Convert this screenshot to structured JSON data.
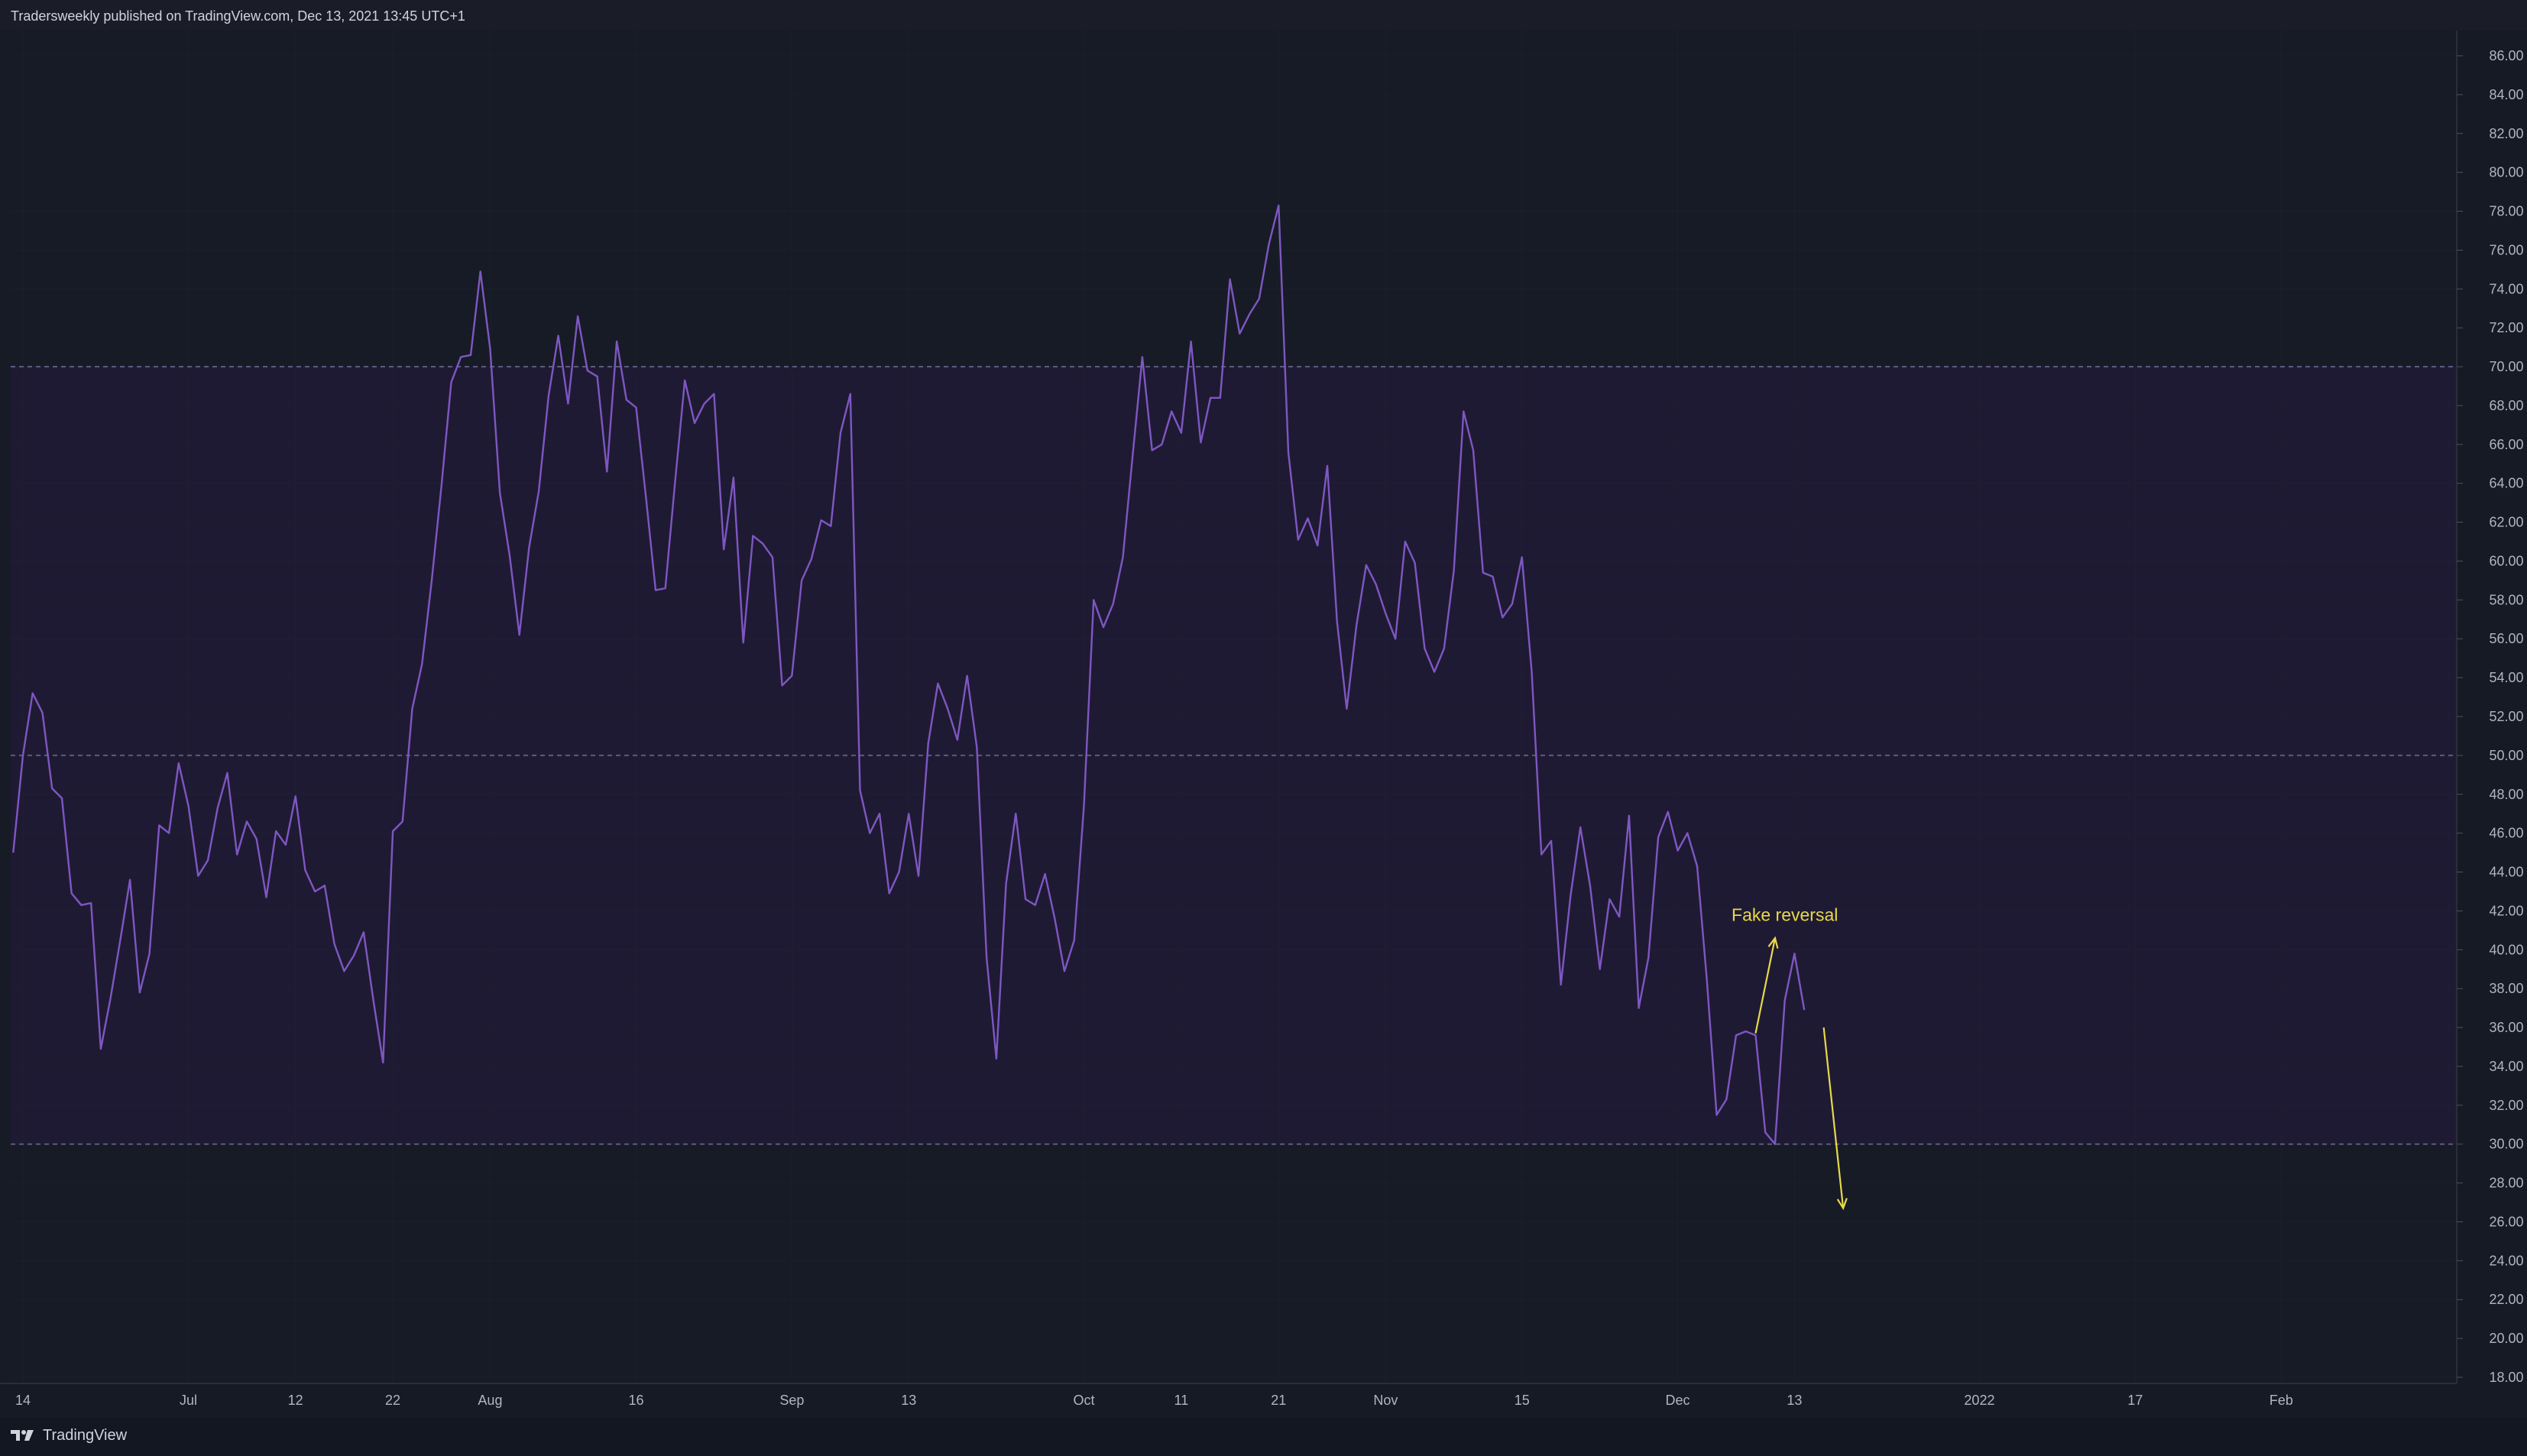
{
  "header": {
    "text": "Tradersweekly published on TradingView.com, Dec 13, 2021 13:45 UTC+1"
  },
  "footer": {
    "brand": "TradingView",
    "logo_icon": "tradingview-logo-icon"
  },
  "colors": {
    "background": "#161a25",
    "line": "#7e57c2",
    "band_fill": "#1f1a33",
    "band_border": "#6c6391",
    "annotation": "#e8d94a",
    "axis_text": "#b2b5be",
    "grid": "#1f2331"
  },
  "chart_data": {
    "type": "line",
    "ylim": [
      17,
      87
    ],
    "y_axis_side": "right",
    "grid": true,
    "y_ticks": [
      "18.00",
      "20.00",
      "22.00",
      "24.00",
      "26.00",
      "28.00",
      "30.00",
      "32.00",
      "34.00",
      "36.00",
      "38.00",
      "40.00",
      "42.00",
      "44.00",
      "46.00",
      "48.00",
      "50.00",
      "52.00",
      "54.00",
      "56.00",
      "58.00",
      "60.00",
      "62.00",
      "64.00",
      "66.00",
      "68.00",
      "70.00",
      "72.00",
      "74.00",
      "76.00",
      "78.00",
      "80.00",
      "82.00",
      "84.00",
      "86.00"
    ],
    "x_range": [
      "2021-06-14",
      "2022-02-10"
    ],
    "x_ticks": [
      {
        "label": "14",
        "date": "2021-06-14"
      },
      {
        "label": "Jul",
        "date": "2021-07-01"
      },
      {
        "label": "12",
        "date": "2021-07-12"
      },
      {
        "label": "22",
        "date": "2021-07-22"
      },
      {
        "label": "Aug",
        "date": "2021-08-01"
      },
      {
        "label": "16",
        "date": "2021-08-16"
      },
      {
        "label": "Sep",
        "date": "2021-09-01"
      },
      {
        "label": "13",
        "date": "2021-09-13"
      },
      {
        "label": "Oct",
        "date": "2021-10-01"
      },
      {
        "label": "11",
        "date": "2021-10-11"
      },
      {
        "label": "21",
        "date": "2021-10-21"
      },
      {
        "label": "Nov",
        "date": "2021-11-01"
      },
      {
        "label": "15",
        "date": "2021-11-15"
      },
      {
        "label": "Dec",
        "date": "2021-12-01"
      },
      {
        "label": "13",
        "date": "2021-12-13"
      },
      {
        "label": "2022",
        "date": "2022-01-01"
      },
      {
        "label": "17",
        "date": "2022-01-17"
      },
      {
        "label": "Feb",
        "date": "2022-02-01"
      }
    ],
    "bands": [
      {
        "from": 30,
        "to": 70
      }
    ],
    "reference_lines": [
      30,
      50,
      70
    ],
    "series": [
      {
        "values": [
          [
            "2021-06-13",
            45.0
          ],
          [
            "2021-06-14",
            50.0
          ],
          [
            "2021-06-15",
            53.2
          ],
          [
            "2021-06-16",
            52.2
          ],
          [
            "2021-06-17",
            48.3
          ],
          [
            "2021-06-18",
            47.8
          ],
          [
            "2021-06-19",
            42.9
          ],
          [
            "2021-06-20",
            42.3
          ],
          [
            "2021-06-21",
            42.4
          ],
          [
            "2021-06-22",
            34.9
          ],
          [
            "2021-06-23",
            37.5
          ],
          [
            "2021-06-24",
            40.5
          ],
          [
            "2021-06-25",
            43.6
          ],
          [
            "2021-06-26",
            37.8
          ],
          [
            "2021-06-27",
            39.8
          ],
          [
            "2021-06-28",
            46.4
          ],
          [
            "2021-06-29",
            46.0
          ],
          [
            "2021-06-30",
            49.6
          ],
          [
            "2021-07-01",
            47.4
          ],
          [
            "2021-07-02",
            43.8
          ],
          [
            "2021-07-03",
            44.6
          ],
          [
            "2021-07-04",
            47.3
          ],
          [
            "2021-07-05",
            49.1
          ],
          [
            "2021-07-06",
            44.9
          ],
          [
            "2021-07-07",
            46.6
          ],
          [
            "2021-07-08",
            45.7
          ],
          [
            "2021-07-09",
            42.7
          ],
          [
            "2021-07-10",
            46.1
          ],
          [
            "2021-07-11",
            45.4
          ],
          [
            "2021-07-12",
            47.9
          ],
          [
            "2021-07-13",
            44.1
          ],
          [
            "2021-07-14",
            43.0
          ],
          [
            "2021-07-15",
            43.3
          ],
          [
            "2021-07-16",
            40.3
          ],
          [
            "2021-07-17",
            38.9
          ],
          [
            "2021-07-18",
            39.7
          ],
          [
            "2021-07-19",
            40.9
          ],
          [
            "2021-07-20",
            37.4
          ],
          [
            "2021-07-21",
            34.2
          ],
          [
            "2021-07-22",
            46.1
          ],
          [
            "2021-07-23",
            46.6
          ],
          [
            "2021-07-24",
            52.4
          ],
          [
            "2021-07-25",
            54.7
          ],
          [
            "2021-07-26",
            59.0
          ],
          [
            "2021-07-27",
            63.9
          ],
          [
            "2021-07-28",
            69.2
          ],
          [
            "2021-07-29",
            70.5
          ],
          [
            "2021-07-30",
            70.6
          ],
          [
            "2021-07-31",
            74.9
          ],
          [
            "2021-08-01",
            70.9
          ],
          [
            "2021-08-02",
            63.5
          ],
          [
            "2021-08-03",
            60.3
          ],
          [
            "2021-08-04",
            56.2
          ],
          [
            "2021-08-05",
            60.7
          ],
          [
            "2021-08-06",
            63.6
          ],
          [
            "2021-08-07",
            68.5
          ],
          [
            "2021-08-08",
            71.6
          ],
          [
            "2021-08-09",
            68.1
          ],
          [
            "2021-08-10",
            72.6
          ],
          [
            "2021-08-11",
            69.8
          ],
          [
            "2021-08-12",
            69.5
          ],
          [
            "2021-08-13",
            64.6
          ],
          [
            "2021-08-14",
            71.3
          ],
          [
            "2021-08-15",
            68.3
          ],
          [
            "2021-08-16",
            67.9
          ],
          [
            "2021-08-17",
            63.3
          ],
          [
            "2021-08-18",
            58.5
          ],
          [
            "2021-08-19",
            58.6
          ],
          [
            "2021-08-20",
            64.1
          ],
          [
            "2021-08-21",
            69.3
          ],
          [
            "2021-08-22",
            67.1
          ],
          [
            "2021-08-23",
            68.1
          ],
          [
            "2021-08-24",
            68.6
          ],
          [
            "2021-08-25",
            60.6
          ],
          [
            "2021-08-26",
            64.3
          ],
          [
            "2021-08-27",
            55.8
          ],
          [
            "2021-08-28",
            61.3
          ],
          [
            "2021-08-29",
            60.9
          ],
          [
            "2021-08-30",
            60.2
          ],
          [
            "2021-08-31",
            53.6
          ],
          [
            "2021-09-01",
            54.1
          ],
          [
            "2021-09-02",
            59.0
          ],
          [
            "2021-09-03",
            60.1
          ],
          [
            "2021-09-04",
            62.1
          ],
          [
            "2021-09-05",
            61.8
          ],
          [
            "2021-09-06",
            66.6
          ],
          [
            "2021-09-07",
            68.6
          ],
          [
            "2021-09-08",
            48.2
          ],
          [
            "2021-09-09",
            46.0
          ],
          [
            "2021-09-10",
            47.0
          ],
          [
            "2021-09-11",
            42.9
          ],
          [
            "2021-09-12",
            44.0
          ],
          [
            "2021-09-13",
            47.0
          ],
          [
            "2021-09-14",
            43.8
          ],
          [
            "2021-09-15",
            50.6
          ],
          [
            "2021-09-16",
            53.7
          ],
          [
            "2021-09-17",
            52.4
          ],
          [
            "2021-09-18",
            50.8
          ],
          [
            "2021-09-19",
            54.1
          ],
          [
            "2021-09-20",
            50.4
          ],
          [
            "2021-09-21",
            39.6
          ],
          [
            "2021-09-22",
            34.4
          ],
          [
            "2021-09-23",
            43.4
          ],
          [
            "2021-09-24",
            47.0
          ],
          [
            "2021-09-25",
            42.6
          ],
          [
            "2021-09-26",
            42.3
          ],
          [
            "2021-09-27",
            43.9
          ],
          [
            "2021-09-28",
            41.6
          ],
          [
            "2021-09-29",
            38.9
          ],
          [
            "2021-09-30",
            40.5
          ],
          [
            "2021-10-01",
            47.4
          ],
          [
            "2021-10-02",
            58.0
          ],
          [
            "2021-10-03",
            56.6
          ],
          [
            "2021-10-04",
            57.8
          ],
          [
            "2021-10-05",
            60.2
          ],
          [
            "2021-10-06",
            65.4
          ],
          [
            "2021-10-07",
            70.5
          ],
          [
            "2021-10-08",
            65.7
          ],
          [
            "2021-10-09",
            66.0
          ],
          [
            "2021-10-10",
            67.7
          ],
          [
            "2021-10-11",
            66.6
          ],
          [
            "2021-10-12",
            71.3
          ],
          [
            "2021-10-13",
            66.1
          ],
          [
            "2021-10-14",
            68.4
          ],
          [
            "2021-10-15",
            68.4
          ],
          [
            "2021-10-16",
            74.5
          ],
          [
            "2021-10-17",
            71.7
          ],
          [
            "2021-10-18",
            72.7
          ],
          [
            "2021-10-19",
            73.5
          ],
          [
            "2021-10-20",
            76.3
          ],
          [
            "2021-10-21",
            78.3
          ],
          [
            "2021-10-22",
            65.6
          ],
          [
            "2021-10-23",
            61.1
          ],
          [
            "2021-10-24",
            62.2
          ],
          [
            "2021-10-25",
            60.8
          ],
          [
            "2021-10-26",
            64.9
          ],
          [
            "2021-10-27",
            56.9
          ],
          [
            "2021-10-28",
            52.4
          ],
          [
            "2021-10-29",
            56.7
          ],
          [
            "2021-10-30",
            59.8
          ],
          [
            "2021-10-31",
            58.8
          ],
          [
            "2021-11-01",
            57.3
          ],
          [
            "2021-11-02",
            56.0
          ],
          [
            "2021-11-03",
            61.0
          ],
          [
            "2021-11-04",
            59.9
          ],
          [
            "2021-11-05",
            55.5
          ],
          [
            "2021-11-06",
            54.3
          ],
          [
            "2021-11-07",
            55.5
          ],
          [
            "2021-11-08",
            59.5
          ],
          [
            "2021-11-09",
            67.7
          ],
          [
            "2021-11-10",
            65.7
          ],
          [
            "2021-11-11",
            59.4
          ],
          [
            "2021-11-12",
            59.2
          ],
          [
            "2021-11-13",
            57.1
          ],
          [
            "2021-11-14",
            57.8
          ],
          [
            "2021-11-15",
            60.2
          ],
          [
            "2021-11-16",
            54.3
          ],
          [
            "2021-11-17",
            44.9
          ],
          [
            "2021-11-18",
            45.6
          ],
          [
            "2021-11-19",
            38.2
          ],
          [
            "2021-11-20",
            42.8
          ],
          [
            "2021-11-21",
            46.3
          ],
          [
            "2021-11-22",
            43.3
          ],
          [
            "2021-11-23",
            39.0
          ],
          [
            "2021-11-24",
            42.6
          ],
          [
            "2021-11-25",
            41.7
          ],
          [
            "2021-11-26",
            46.9
          ],
          [
            "2021-11-27",
            37.0
          ],
          [
            "2021-11-28",
            39.6
          ],
          [
            "2021-11-29",
            45.8
          ],
          [
            "2021-11-30",
            47.1
          ],
          [
            "2021-12-01",
            45.1
          ],
          [
            "2021-12-02",
            46.0
          ],
          [
            "2021-12-03",
            44.3
          ],
          [
            "2021-12-04",
            38.4
          ],
          [
            "2021-12-05",
            31.5
          ],
          [
            "2021-12-06",
            32.3
          ],
          [
            "2021-12-07",
            35.6
          ],
          [
            "2021-12-08",
            35.8
          ],
          [
            "2021-12-09",
            35.6
          ],
          [
            "2021-12-10",
            30.6
          ],
          [
            "2021-12-11",
            30.0
          ],
          [
            "2021-12-12",
            37.4
          ],
          [
            "2021-12-13",
            39.8
          ],
          [
            "2021-12-14",
            36.9
          ]
        ]
      }
    ],
    "annotations": [
      {
        "text": "Fake reversal",
        "x": "2021-12-12",
        "y": 41.8
      },
      {
        "type": "arrow",
        "from": [
          "2021-12-09",
          35.7
        ],
        "to": [
          "2021-12-11",
          40.6
        ]
      },
      {
        "type": "arrow",
        "from": [
          "2021-12-16",
          36.0
        ],
        "to": [
          "2021-12-18",
          26.7
        ]
      }
    ]
  }
}
